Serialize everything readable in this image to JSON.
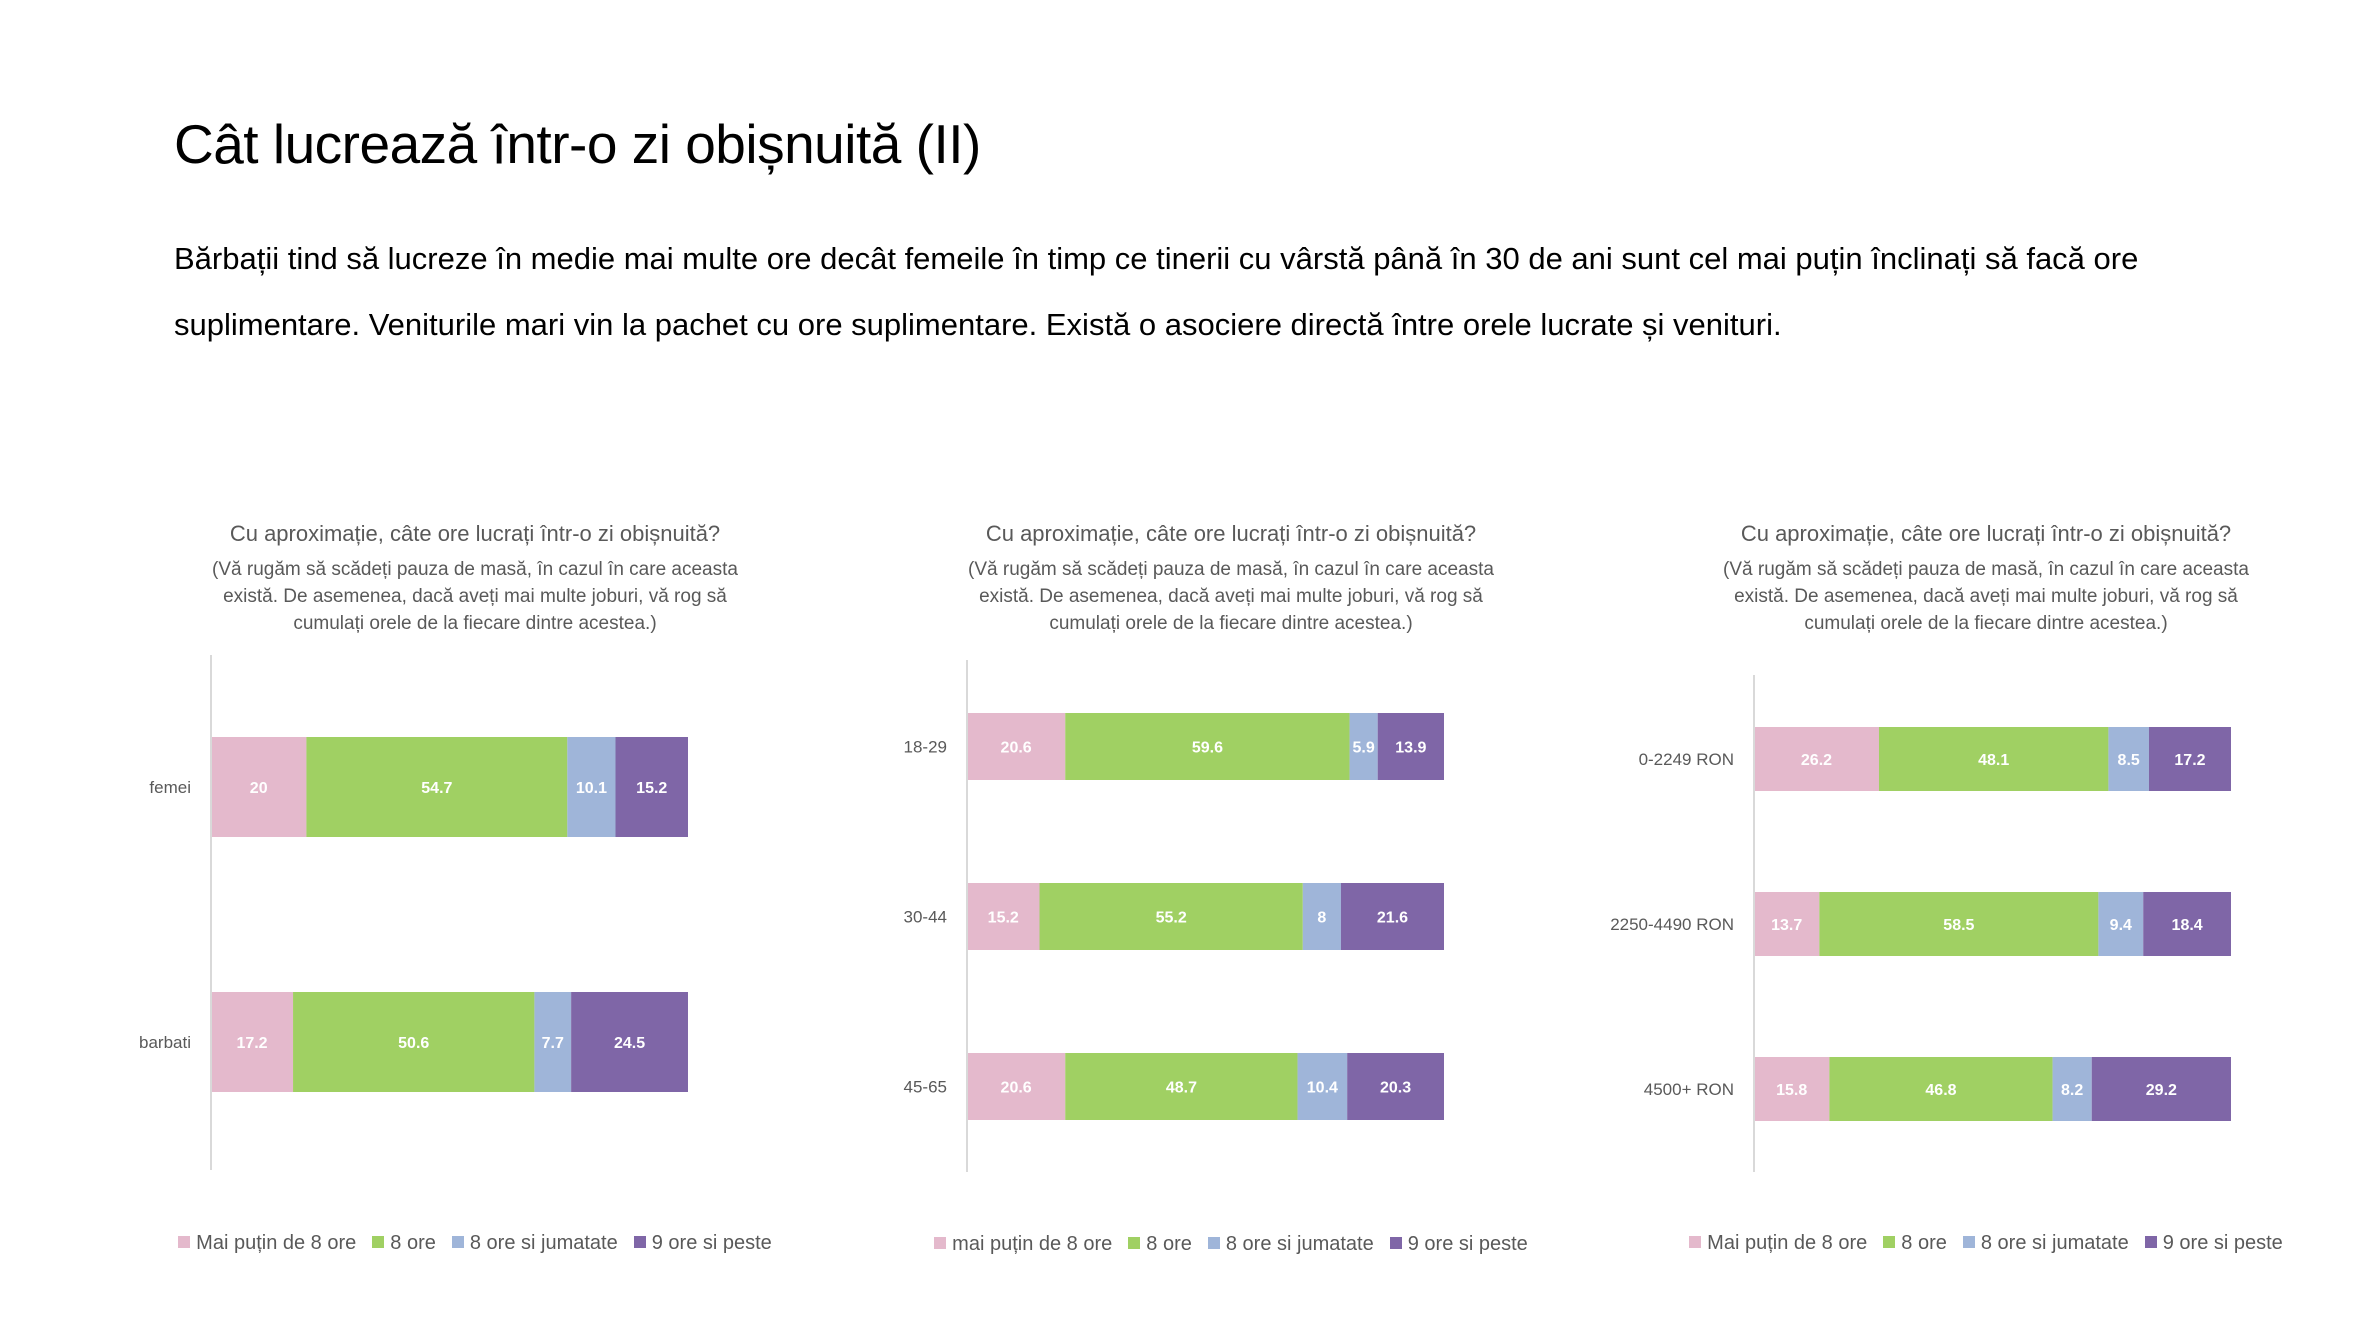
{
  "slide": {
    "title": "Cât lucrează într-o zi obișnuită (II)",
    "body": "Bărbații tind să lucreze în medie mai multe ore decât femeile în timp ce tinerii cu vârstă până în 30 de ani sunt cel mai puțin înclinați să facă ore suplimentare. Veniturile mari vin la pachet cu ore suplimentare. Există o asociere directă între orele lucrate și venituri."
  },
  "colors": [
    "#e4b9cc",
    "#a0d063",
    "#9fb5d9",
    "#7f66a7"
  ],
  "chart_data": [
    {
      "type": "bar",
      "orientation": "horizontal",
      "stacked": "percent",
      "title": "Cu aproximație, câte ore lucrați într-o zi obișnuită?",
      "subtitle_lines": [
        "(Vă rugăm să scădeți pauza de masă, în cazul în care aceasta",
        "există. De asemenea, dacă aveți mai multe joburi, vă rog să",
        "cumulați orele de la fiecare dintre acestea.)"
      ],
      "categories": [
        "femei",
        "barbati"
      ],
      "series": [
        {
          "name": "Mai puțin de 8 ore",
          "values": [
            20,
            17.2
          ]
        },
        {
          "name": "8 ore",
          "values": [
            54.7,
            50.6
          ]
        },
        {
          "name": "8 ore si jumatate",
          "values": [
            10.1,
            7.7
          ]
        },
        {
          "name": "9 ore si peste",
          "values": [
            15.2,
            24.5
          ]
        }
      ],
      "legend_position": "bottom"
    },
    {
      "type": "bar",
      "orientation": "horizontal",
      "stacked": "percent",
      "title": "Cu aproximație, câte ore lucrați într-o zi obișnuită?",
      "subtitle_lines": [
        "(Vă rugăm să scădeți pauza de masă, în cazul în care aceasta",
        "există. De asemenea, dacă aveți mai multe joburi, vă rog să",
        "cumulați orele de la fiecare dintre acestea.)"
      ],
      "categories": [
        "18-29",
        "30-44",
        "45-65"
      ],
      "series": [
        {
          "name": "mai puțin de 8 ore",
          "values": [
            20.6,
            15.2,
            20.6
          ]
        },
        {
          "name": "8 ore",
          "values": [
            59.6,
            55.2,
            48.7
          ]
        },
        {
          "name": "8 ore si jumatate",
          "values": [
            5.9,
            8,
            10.4
          ]
        },
        {
          "name": "9 ore si peste",
          "values": [
            13.9,
            21.6,
            20.3
          ]
        }
      ],
      "legend_position": "bottom"
    },
    {
      "type": "bar",
      "orientation": "horizontal",
      "stacked": "percent",
      "title": "Cu aproximație, câte ore lucrați într-o zi obișnuită?",
      "subtitle_lines": [
        "(Vă rugăm să scădeți pauza de masă, în cazul în care aceasta",
        "există. De asemenea, dacă aveți mai multe joburi, vă rog să",
        "cumulați orele de la fiecare dintre acestea.)"
      ],
      "categories": [
        "0-2249 RON",
        "2250-4490 RON",
        "4500+ RON"
      ],
      "series": [
        {
          "name": "Mai puțin de 8 ore",
          "values": [
            26.2,
            13.7,
            15.8
          ]
        },
        {
          "name": "8 ore",
          "values": [
            48.1,
            58.5,
            46.8
          ]
        },
        {
          "name": "8 ore si jumatate",
          "values": [
            8.5,
            9.4,
            8.2
          ]
        },
        {
          "name": "9 ore si peste",
          "values": [
            17.2,
            18.4,
            29.2
          ]
        }
      ],
      "legend_position": "bottom"
    }
  ]
}
